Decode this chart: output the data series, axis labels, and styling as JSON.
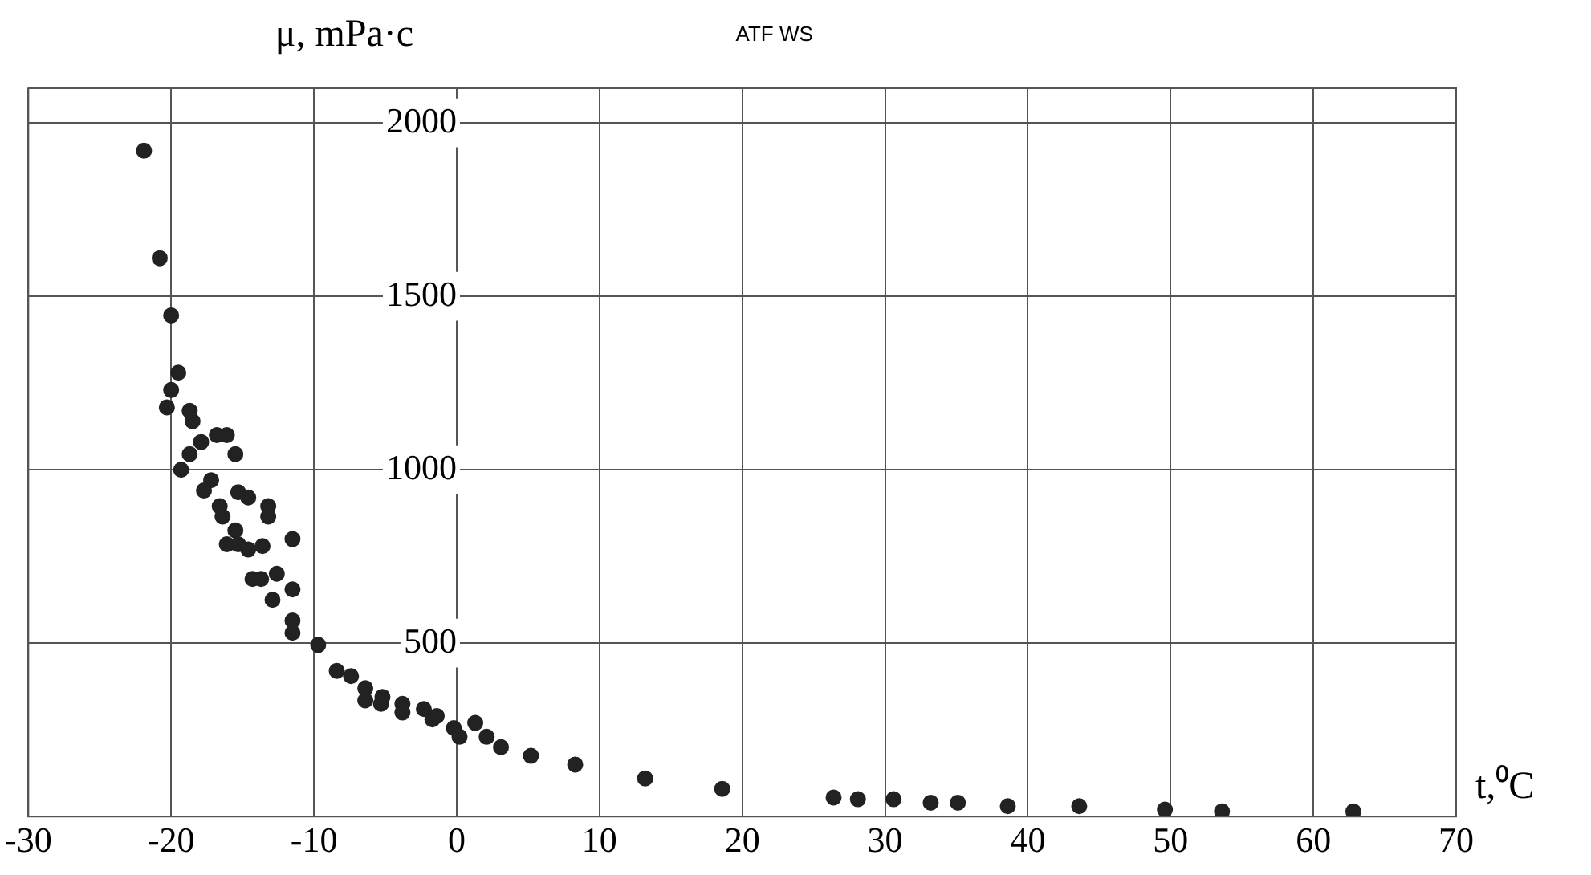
{
  "chart_data": {
    "type": "scatter",
    "title": "ATF WS",
    "xlabel": "t,⁰C",
    "ylabel": "μ, mPa·c",
    "x": [
      -21.9,
      -20.8,
      -20.0,
      -19.5,
      -20.0,
      -20.3,
      -18.7,
      -18.5,
      -17.9,
      -18.7,
      -19.3,
      -16.8,
      -16.1,
      -15.5,
      -17.2,
      -17.7,
      -15.3,
      -14.6,
      -16.6,
      -13.2,
      -13.2,
      -16.4,
      -11.5,
      -15.5,
      -16.1,
      -15.3,
      -14.6,
      -13.6,
      -12.6,
      -14.3,
      -13.7,
      -11.5,
      -12.9,
      -11.5,
      -11.5,
      -9.7,
      -8.4,
      -7.4,
      -6.4,
      -6.4,
      -5.2,
      -5.3,
      -3.8,
      -3.8,
      -2.3,
      -1.7,
      -1.4,
      -0.2,
      0.2,
      1.3,
      2.1,
      3.1,
      5.2,
      8.3,
      13.2,
      18.6,
      26.4,
      28.1,
      30.6,
      33.2,
      35.1,
      38.6,
      43.6,
      49.6,
      53.6,
      62.8
    ],
    "series": [
      {
        "color": "#222222",
        "values": [
          1920,
          1610,
          1445,
          1280,
          1230,
          1180,
          1170,
          1140,
          1080,
          1045,
          1000,
          1100,
          1100,
          1045,
          970,
          940,
          935,
          920,
          895,
          895,
          865,
          865,
          800,
          825,
          785,
          785,
          770,
          780,
          700,
          685,
          685,
          655,
          625,
          565,
          530,
          495,
          420,
          405,
          370,
          335,
          345,
          325,
          325,
          300,
          310,
          280,
          290,
          255,
          230,
          270,
          230,
          200,
          175,
          150,
          110,
          80,
          55,
          50,
          50,
          40,
          40,
          30,
          30,
          20,
          15,
          15
        ]
      }
    ],
    "xlim": [
      -30,
      70
    ],
    "ylim": [
      0,
      2100
    ],
    "xticks": [
      -30,
      -20,
      -10,
      0,
      10,
      20,
      30,
      40,
      50,
      60,
      70
    ],
    "yticks": [
      500,
      1000,
      1500,
      2000
    ],
    "grid": true,
    "marker": "circle",
    "legend": false
  }
}
